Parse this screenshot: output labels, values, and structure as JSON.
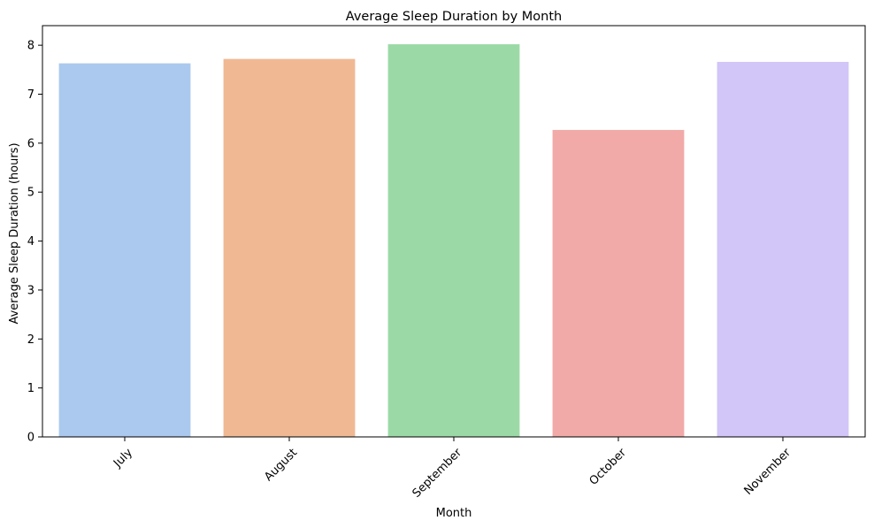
{
  "chart_data": {
    "type": "bar",
    "title": "Average Sleep Duration by Month",
    "xlabel": "Month",
    "ylabel": "Average Sleep Duration (hours)",
    "categories": [
      "July",
      "August",
      "September",
      "October",
      "November"
    ],
    "values": [
      7.63,
      7.72,
      8.02,
      6.27,
      7.66
    ],
    "colors": [
      "#abc9ee",
      "#f0b893",
      "#9bdaa7",
      "#f1aaa8",
      "#d2c5f7"
    ],
    "ylim": [
      0,
      8.4
    ],
    "yticks": [
      0,
      1,
      2,
      3,
      4,
      5,
      6,
      7,
      8
    ],
    "ytick_labels": [
      "0",
      "1",
      "2",
      "3",
      "4",
      "5",
      "6",
      "7",
      "8"
    ],
    "grid": false,
    "legend": "none",
    "xtick_rotation": 45
  }
}
